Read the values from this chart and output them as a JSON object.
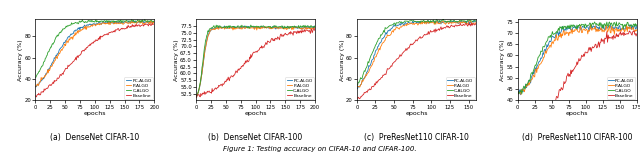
{
  "suptitle": "Figure 1: Testing accuracy on CIFAR-10 and CIFAR-100.",
  "subplots": [
    {
      "caption": "(a)  DenseNet CIFAR-10",
      "xlabel": "epochs",
      "ylabel": "Accuracy (%)",
      "ylim": [
        20,
        96
      ],
      "xlim": [
        0,
        200
      ],
      "xticks": [
        0,
        25,
        50,
        75,
        100,
        125,
        150,
        175,
        200
      ],
      "yticks": [
        20,
        40,
        60,
        80
      ]
    },
    {
      "caption": "(b)  DenseNet CIFAR-100",
      "xlabel": "epochs",
      "ylabel": "Accuracy (%)",
      "ylim": [
        50,
        80
      ],
      "xlim": [
        0,
        200
      ],
      "xticks": [
        0,
        25,
        50,
        75,
        100,
        125,
        150,
        175,
        200
      ],
      "yticks": [
        52.5,
        55.0,
        57.5,
        60.0,
        62.5,
        65.0,
        67.5,
        70.0,
        72.5,
        75.0,
        77.5
      ]
    },
    {
      "caption": "(c)  PreResNet110 CIFAR-10",
      "xlabel": "epochs",
      "ylabel": "Accuracy (%)",
      "ylim": [
        20,
        96
      ],
      "xlim": [
        0,
        160
      ],
      "xticks": [
        0,
        25,
        50,
        75,
        100,
        125,
        150
      ],
      "yticks": [
        20,
        40,
        60,
        80
      ]
    },
    {
      "caption": "(d)  PreResNet110 CIFAR-100",
      "xlabel": "epochs",
      "ylabel": "Accuracy (%)",
      "ylim": [
        40,
        76
      ],
      "xlim": [
        0,
        175
      ],
      "xticks": [
        0,
        25,
        50,
        75,
        100,
        125,
        150,
        175
      ],
      "yticks": [
        40,
        45,
        50,
        55,
        60,
        65,
        70,
        75
      ]
    }
  ],
  "legend_labels": [
    "PC-ALGO",
    "P-ALGO",
    "C-ALGO",
    "Baseline"
  ],
  "line_colors": [
    "#1f77b4",
    "#ff7f0e",
    "#2ca02c",
    "#d62728"
  ],
  "line_width": 0.6
}
